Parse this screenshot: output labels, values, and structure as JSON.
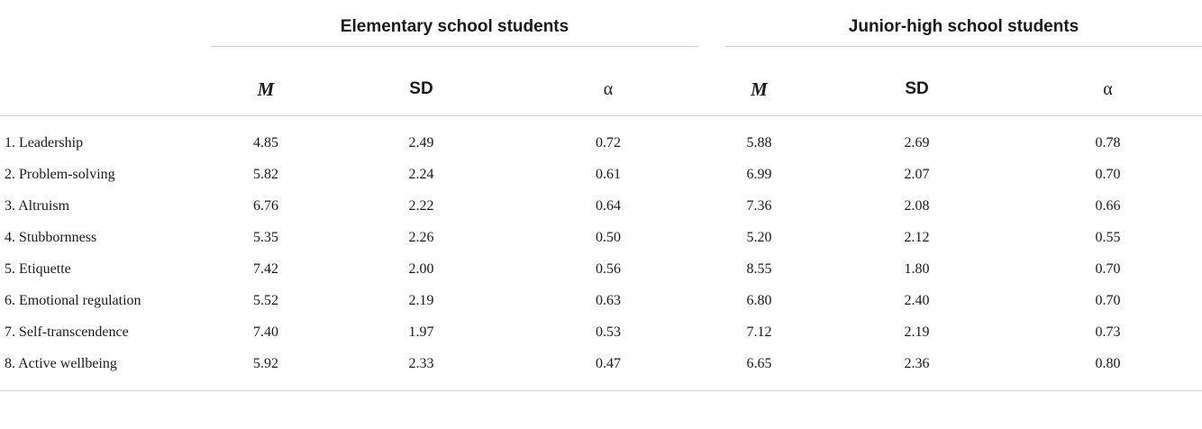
{
  "groups": {
    "elementary": "Elementary school students",
    "junior": "Junior-high school students"
  },
  "columns": {
    "m": "M",
    "sd": "SD",
    "alpha": "α"
  },
  "rows": [
    {
      "label": "1. Leadership",
      "e_m": "4.85",
      "e_sd": "2.49",
      "e_a": "0.72",
      "j_m": "5.88",
      "j_sd": "2.69",
      "j_a": "0.78"
    },
    {
      "label": "2. Problem-solving",
      "e_m": "5.82",
      "e_sd": "2.24",
      "e_a": "0.61",
      "j_m": "6.99",
      "j_sd": "2.07",
      "j_a": "0.70"
    },
    {
      "label": "3. Altruism",
      "e_m": "6.76",
      "e_sd": "2.22",
      "e_a": "0.64",
      "j_m": "7.36",
      "j_sd": "2.08",
      "j_a": "0.66"
    },
    {
      "label": "4. Stubbornness",
      "e_m": "5.35",
      "e_sd": "2.26",
      "e_a": "0.50",
      "j_m": "5.20",
      "j_sd": "2.12",
      "j_a": "0.55"
    },
    {
      "label": "5. Etiquette",
      "e_m": "7.42",
      "e_sd": "2.00",
      "e_a": "0.56",
      "j_m": "8.55",
      "j_sd": "1.80",
      "j_a": "0.70"
    },
    {
      "label": "6. Emotional regulation",
      "e_m": "5.52",
      "e_sd": "2.19",
      "e_a": "0.63",
      "j_m": "6.80",
      "j_sd": "2.40",
      "j_a": "0.70"
    },
    {
      "label": "7. Self-transcendence",
      "e_m": "7.40",
      "e_sd": "1.97",
      "e_a": "0.53",
      "j_m": "7.12",
      "j_sd": "2.19",
      "j_a": "0.73"
    },
    {
      "label": "8. Active wellbeing",
      "e_m": "5.92",
      "e_sd": "2.33",
      "e_a": "0.47",
      "j_m": "6.65",
      "j_sd": "2.36",
      "j_a": "0.80"
    }
  ]
}
